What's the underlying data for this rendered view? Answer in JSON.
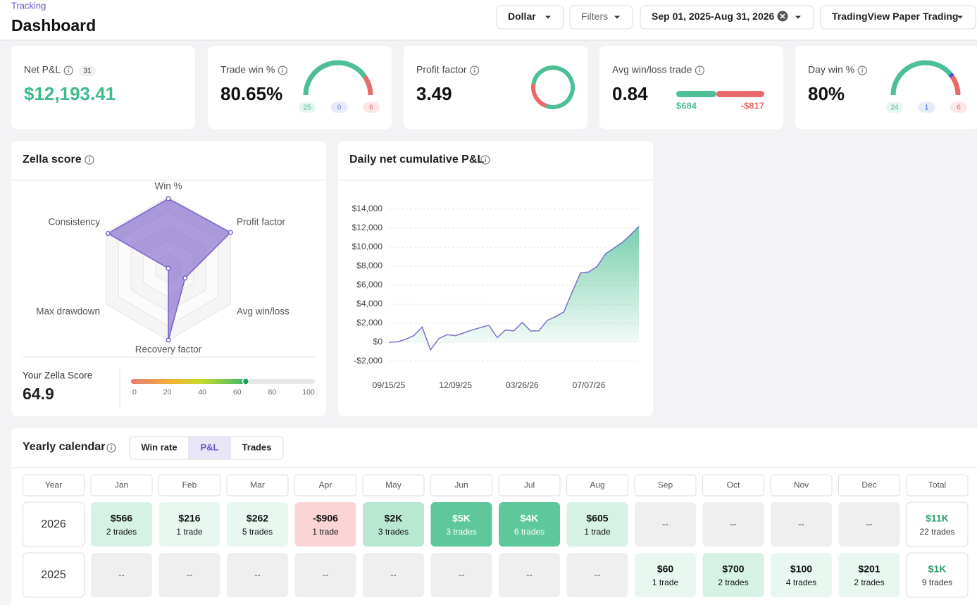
{
  "header": {
    "section": "Tracking",
    "title": "Dashboard"
  },
  "filters": [
    "Dollar",
    "Filters",
    "Sep 01, 2025-Aug 31, 2026",
    "TradingView Paper Trading"
  ],
  "cards": {
    "net_pnl": {
      "label": "Net P&L",
      "count": 31,
      "value": "$12,193.41"
    },
    "trade_win": {
      "label": "Trade win %",
      "value": "80.65%",
      "gauge": {
        "type": "gauge",
        "values": [
          25,
          0,
          6
        ],
        "colors": [
          "#4cbf94",
          "#6b7fd7",
          "#e86a6a"
        ]
      }
    },
    "profit_factor": {
      "label": "Profit factor",
      "value": 3.49,
      "colors": [
        "#4cbf94",
        "#e86a6a"
      ]
    },
    "avg_win_loss": {
      "label": "Avg win/loss trade",
      "value": 0.84,
      "values": [
        684,
        -817
      ],
      "value_labels": [
        "$684",
        "-$817"
      ],
      "colors": [
        "#4cbf94",
        "#e86a6a"
      ]
    },
    "day_win": {
      "label": "Day win %",
      "value": "80%",
      "gauge": {
        "type": "gauge",
        "values": [
          24,
          1,
          6
        ],
        "colors": [
          "#4cbf94",
          "#3d5bd9",
          "#e86a6a"
        ]
      }
    }
  },
  "zella": {
    "type": "radar",
    "title": "Zella score",
    "axes": [
      "Win %",
      "Profit factor",
      "Avg win/loss",
      "Recovery factor",
      "Max drawdown",
      "Consistency"
    ],
    "values": [
      97,
      100,
      27,
      100,
      0,
      97
    ],
    "rlim": [
      0,
      100
    ],
    "color": "#7b61c9",
    "score_label": "Your Zella Score",
    "score": 64.9,
    "xlim": [
      0,
      100
    ],
    "xticks": [
      0,
      20,
      40,
      60,
      80,
      100
    ]
  },
  "chart_data": {
    "type": "line",
    "title": "Daily net cumulative P&L",
    "categories": [
      "09/15/25",
      null,
      null,
      null,
      null,
      null,
      null,
      null,
      "12/09/25",
      null,
      null,
      null,
      null,
      null,
      null,
      null,
      "03/26/26",
      null,
      null,
      null,
      null,
      null,
      null,
      null,
      "07/07/26",
      null,
      null,
      null,
      null,
      null,
      null
    ],
    "values": [
      0,
      50,
      300,
      700,
      1600,
      -800,
      400,
      800,
      700,
      1000,
      1300,
      1550,
      1800,
      500,
      1300,
      1200,
      2100,
      1200,
      1200,
      2300,
      2700,
      3200,
      5300,
      7300,
      7400,
      8000,
      9300,
      9900,
      10500,
      11300,
      12193
    ],
    "color": "#7b6fc9",
    "fill": "#4cbf94",
    "grid": true,
    "ylim": [
      -2000,
      14000
    ],
    "yticks": [
      {
        "value": -2000,
        "label": "-$2,000"
      },
      {
        "value": 0,
        "label": "$0"
      },
      {
        "value": 2000,
        "label": "$2,000"
      },
      {
        "value": 4000,
        "label": "$4,000"
      },
      {
        "value": 6000,
        "label": "$6,000"
      },
      {
        "value": 8000,
        "label": "$8,000"
      },
      {
        "value": 10000,
        "label": "$10,000"
      },
      {
        "value": 12000,
        "label": "$12,000"
      },
      {
        "value": 14000,
        "label": "$14,000"
      }
    ]
  },
  "calendar": {
    "title": "Yearly calendar",
    "tabs": [
      "Win rate",
      "P&L",
      "Trades"
    ],
    "active_tab": 1,
    "columns": [
      "Year",
      "Jan",
      "Feb",
      "Mar",
      "Apr",
      "May",
      "Jun",
      "Jul",
      "Aug",
      "Sep",
      "Oct",
      "Nov",
      "Dec",
      "Total"
    ],
    "rows": [
      {
        "year": "2026",
        "cells": [
          {
            "label": "$566",
            "trades": "2 trades",
            "value": 566
          },
          {
            "label": "$216",
            "trades": "1 trade",
            "value": 216
          },
          {
            "label": "$262",
            "trades": "5 trades",
            "value": 262
          },
          {
            "label": "-$906",
            "trades": "1 trade",
            "value": -906
          },
          {
            "label": "$2K",
            "trades": "3 trades",
            "value": 2000
          },
          {
            "label": "$5K",
            "trades": "3 trades",
            "value": 5000
          },
          {
            "label": "$4K",
            "trades": "6 trades",
            "value": 4000
          },
          {
            "label": "$605",
            "trades": "1 trade",
            "value": 605
          },
          {
            "label": "--"
          },
          {
            "label": "--"
          },
          {
            "label": "--"
          },
          {
            "label": "--"
          }
        ],
        "total": {
          "label": "$11K",
          "trades": "22 trades",
          "value": 11000
        }
      },
      {
        "year": "2025",
        "cells": [
          {
            "label": "--"
          },
          {
            "label": "--"
          },
          {
            "label": "--"
          },
          {
            "label": "--"
          },
          {
            "label": "--"
          },
          {
            "label": "--"
          },
          {
            "label": "--"
          },
          {
            "label": "--"
          },
          {
            "label": "$60",
            "trades": "1 trade",
            "value": 60
          },
          {
            "label": "$700",
            "trades": "2 trades",
            "value": 700
          },
          {
            "label": "$100",
            "trades": "4 trades",
            "value": 100
          },
          {
            "label": "$201",
            "trades": "2 trades",
            "value": 201
          }
        ],
        "total": {
          "label": "$1K",
          "trades": "9 trades",
          "value": 1000
        }
      }
    ]
  }
}
